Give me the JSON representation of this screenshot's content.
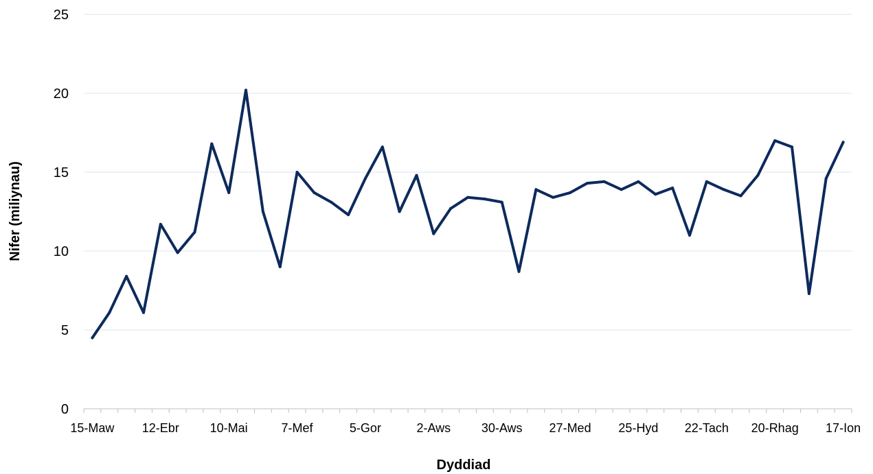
{
  "chart_data": {
    "type": "line",
    "xlabel": "Dyddiad",
    "ylabel": "Nifer (miliynau)",
    "ylim": [
      0,
      25
    ],
    "yticks": [
      "0",
      "5",
      "10",
      "15",
      "20",
      "25"
    ],
    "grid": true,
    "x_tick_labels": [
      "15-Maw",
      "12-Ebr",
      "10-Mai",
      "7-Mef",
      "5-Gor",
      "2-Aws",
      "30-Aws",
      "27-Med",
      "25-Hyd",
      "22-Tach",
      "20-Rhag",
      "17-Ion"
    ],
    "series": [
      {
        "color": "#0d2a5c",
        "values": [
          4.5,
          6.1,
          8.4,
          6.1,
          11.7,
          9.9,
          11.2,
          16.8,
          13.7,
          20.2,
          12.5,
          9.0,
          15.0,
          13.7,
          13.1,
          12.3,
          14.6,
          16.6,
          12.5,
          14.8,
          11.1,
          12.7,
          13.4,
          13.3,
          13.1,
          8.7,
          13.9,
          13.4,
          13.7,
          14.3,
          14.4,
          13.9,
          14.4,
          13.6,
          14.0,
          11.0,
          14.4,
          13.9,
          13.5,
          14.8,
          17.0,
          16.6,
          7.3,
          14.6,
          16.9
        ]
      }
    ]
  }
}
